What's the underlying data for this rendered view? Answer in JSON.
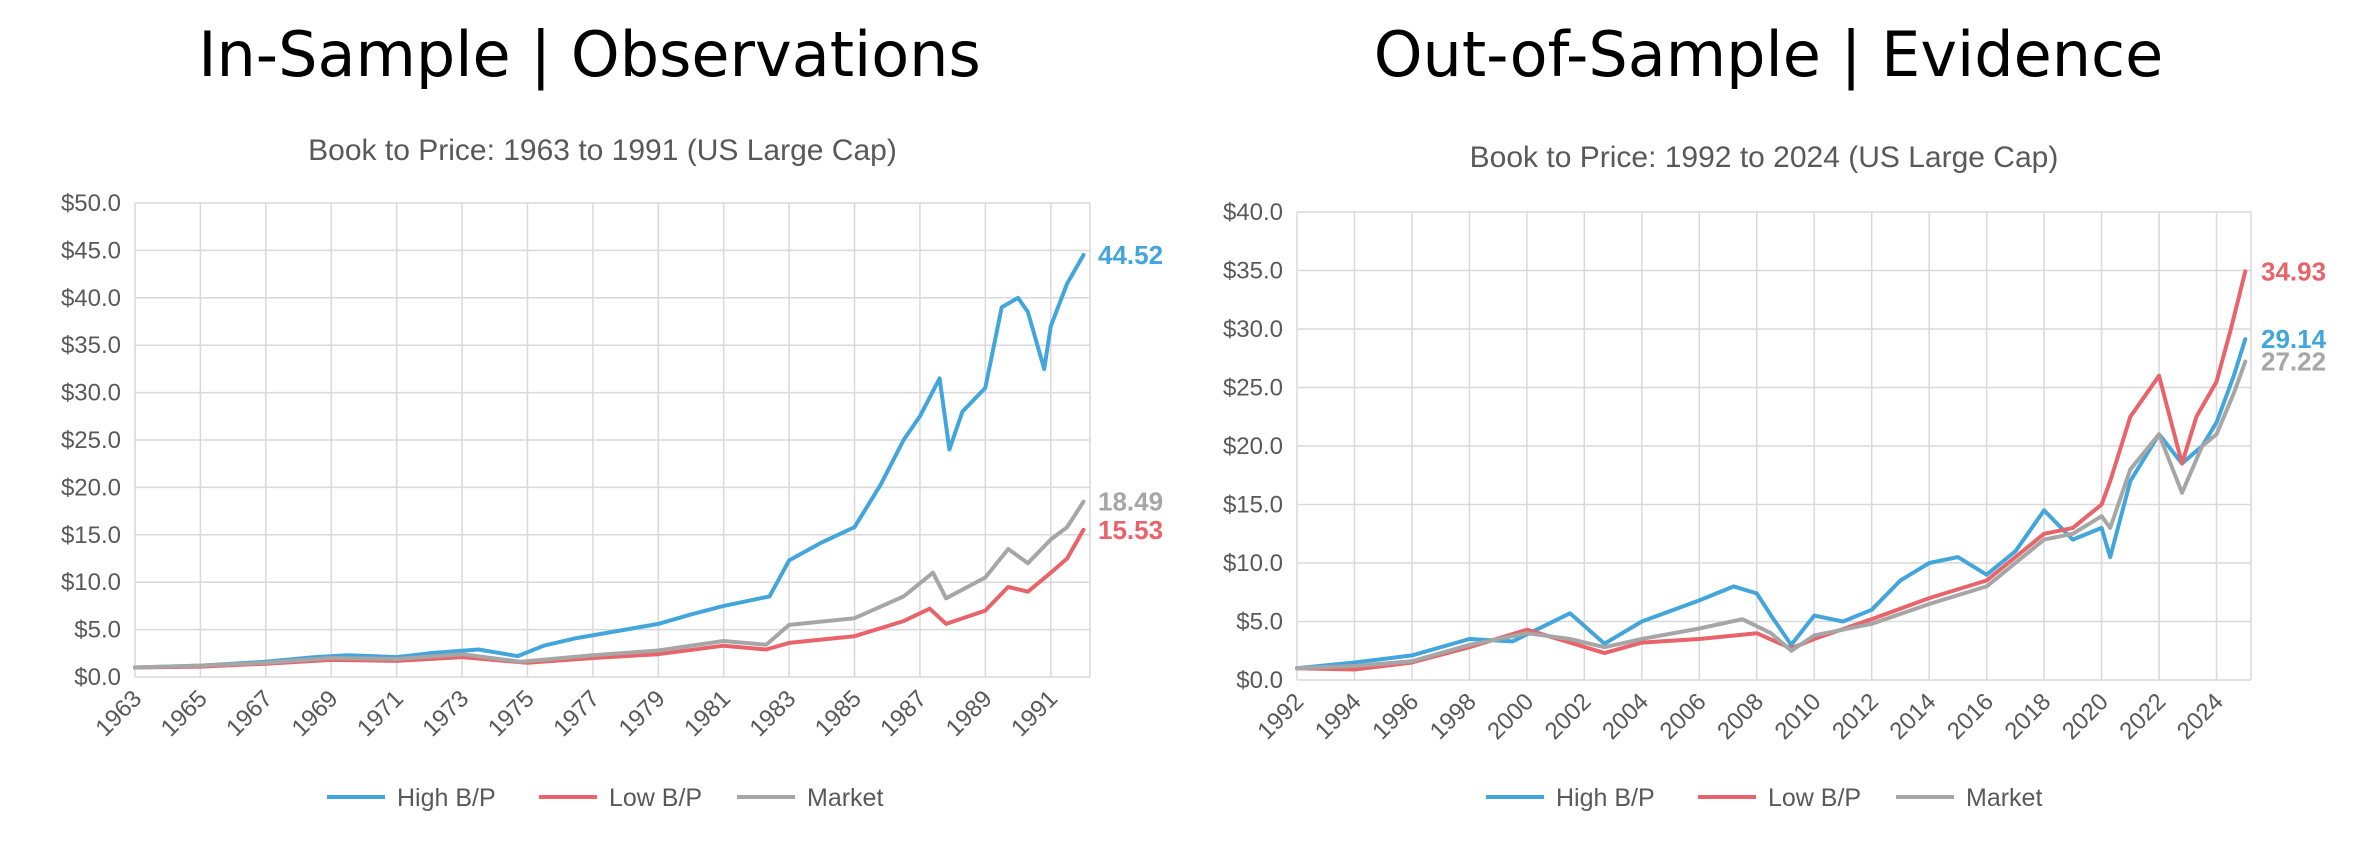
{
  "headings": [
    "In-Sample | Observations",
    "Out-of-Sample | Evidence"
  ],
  "colors": {
    "high": "#42a6dc",
    "low": "#e8646a",
    "market": "#a6a6a6",
    "grid": "#d9d9d9",
    "text": "#595959"
  },
  "chart_data": [
    {
      "type": "line",
      "title": "Book to Price: 1963 to 1991 (US Large Cap)",
      "xlabel": "",
      "ylabel": "",
      "x_range": [
        1963.0,
        1992.2
      ],
      "ylim": [
        0,
        50
      ],
      "y_ticks": [
        "$0.0",
        "$5.0",
        "$10.0",
        "$15.0",
        "$20.0",
        "$25.0",
        "$30.0",
        "$35.0",
        "$40.0",
        "$45.0",
        "$50.0"
      ],
      "x_ticks": [
        "1963",
        "1965",
        "1967",
        "1969",
        "1971",
        "1973",
        "1975",
        "1977",
        "1979",
        "1981",
        "1983",
        "1985",
        "1987",
        "1989",
        "1991"
      ],
      "grid": true,
      "legend": "bottom",
      "series": [
        {
          "name": "High B/P",
          "color": "#42a6dc",
          "end_label": "44.52",
          "x": [
            1963,
            1965,
            1967,
            1968.5,
            1969.5,
            1971,
            1972,
            1973.5,
            1974.7,
            1975.5,
            1976.5,
            1978,
            1979,
            1980,
            1981,
            1982.4,
            1983,
            1984,
            1985,
            1985.8,
            1986.5,
            1987,
            1987.6,
            1987.9,
            1988.3,
            1989,
            1989.5,
            1990,
            1990.3,
            1990.8,
            1991,
            1991.5,
            1992
          ],
          "y": [
            1.0,
            1.2,
            1.6,
            2.1,
            2.3,
            2.1,
            2.5,
            2.9,
            2.2,
            3.3,
            4.1,
            5.0,
            5.6,
            6.6,
            7.5,
            8.5,
            12.3,
            14.2,
            15.8,
            20.3,
            25.0,
            27.5,
            31.5,
            24.0,
            28.0,
            30.5,
            39.0,
            40.0,
            38.5,
            32.5,
            37.0,
            41.5,
            44.52
          ]
        },
        {
          "name": "Low B/P",
          "color": "#e8646a",
          "end_label": "15.53",
          "x": [
            1963,
            1965,
            1967,
            1969,
            1971,
            1973,
            1975,
            1977,
            1979,
            1981,
            1982.3,
            1983,
            1985,
            1986.5,
            1987.3,
            1987.8,
            1989,
            1989.7,
            1990.3,
            1991,
            1991.5,
            1992
          ],
          "y": [
            1.0,
            1.1,
            1.4,
            1.8,
            1.7,
            2.1,
            1.5,
            2.0,
            2.4,
            3.3,
            2.9,
            3.6,
            4.3,
            5.9,
            7.2,
            5.6,
            7.0,
            9.5,
            9.0,
            11.0,
            12.5,
            15.53
          ]
        },
        {
          "name": "Market",
          "color": "#a6a6a6",
          "end_label": "18.49",
          "x": [
            1963,
            1965,
            1967,
            1969,
            1971,
            1973,
            1974.8,
            1977,
            1979,
            1981,
            1982.3,
            1983,
            1985,
            1986.5,
            1987.4,
            1987.8,
            1989,
            1989.7,
            1990.3,
            1991,
            1991.5,
            1992
          ],
          "y": [
            1.0,
            1.2,
            1.5,
            2.0,
            1.9,
            2.4,
            1.6,
            2.3,
            2.8,
            3.8,
            3.4,
            5.5,
            6.2,
            8.5,
            11.0,
            8.3,
            10.5,
            13.5,
            12.0,
            14.5,
            15.8,
            18.49
          ]
        }
      ]
    },
    {
      "type": "line",
      "title": "Book to Price: 1992 to 2024 (US Large Cap)",
      "xlabel": "",
      "ylabel": "",
      "x_range": [
        1992.0,
        2025.2
      ],
      "ylim": [
        0,
        40
      ],
      "y_ticks": [
        "$0.0",
        "$5.0",
        "$10.0",
        "$15.0",
        "$20.0",
        "$25.0",
        "$30.0",
        "$35.0",
        "$40.0"
      ],
      "x_ticks": [
        "1992",
        "1994",
        "1996",
        "1998",
        "2000",
        "2002",
        "2004",
        "2006",
        "2008",
        "2010",
        "2012",
        "2014",
        "2016",
        "2018",
        "2020",
        "2022",
        "2024"
      ],
      "grid": true,
      "legend": "bottom",
      "series": [
        {
          "name": "High B/P",
          "color": "#42a6dc",
          "end_label": "29.14",
          "x": [
            1992,
            1994,
            1996,
            1998,
            1999.5,
            2000.5,
            2001.5,
            2002.7,
            2004,
            2006,
            2007.2,
            2008,
            2008.5,
            2009.2,
            2010,
            2011,
            2012,
            2013,
            2014,
            2015,
            2016,
            2017,
            2018,
            2019,
            2020,
            2020.3,
            2021,
            2022,
            2022.8,
            2023.5,
            2024,
            2024.6,
            2025
          ],
          "y": [
            1.0,
            1.5,
            2.1,
            3.5,
            3.3,
            4.5,
            5.7,
            3.1,
            5.0,
            6.8,
            8.0,
            7.4,
            5.5,
            3.0,
            5.5,
            5.0,
            6.0,
            8.5,
            10.0,
            10.5,
            9.0,
            11.0,
            14.5,
            12.0,
            13.0,
            10.5,
            17.0,
            21.0,
            18.5,
            20.0,
            22.0,
            26.0,
            29.14
          ]
        },
        {
          "name": "Low B/P",
          "color": "#e8646a",
          "end_label": "34.93",
          "x": [
            1992,
            1994,
            1996,
            1998,
            2000,
            2001.5,
            2002.7,
            2004,
            2006,
            2008,
            2009.2,
            2010,
            2012,
            2014,
            2016,
            2018,
            2019,
            2020,
            2020.3,
            2021,
            2022,
            2022.8,
            2023.3,
            2024,
            2024.5,
            2025
          ],
          "y": [
            1.0,
            0.9,
            1.5,
            2.8,
            4.3,
            3.2,
            2.3,
            3.2,
            3.5,
            4.0,
            2.7,
            3.5,
            5.2,
            7.0,
            8.5,
            12.5,
            13.0,
            15.0,
            17.0,
            22.5,
            26.0,
            18.5,
            22.5,
            25.5,
            30.0,
            34.93
          ]
        },
        {
          "name": "Market",
          "color": "#a6a6a6",
          "end_label": "27.22",
          "x": [
            1992,
            1994,
            1996,
            1998,
            2000,
            2001.5,
            2002.7,
            2004,
            2006,
            2007.5,
            2008.5,
            2009.2,
            2010,
            2012,
            2014,
            2016,
            2018,
            2019,
            2020,
            2020.3,
            2021,
            2022,
            2022.8,
            2023.5,
            2024,
            2024.6,
            2025
          ],
          "y": [
            1.0,
            1.2,
            1.6,
            3.0,
            4.0,
            3.5,
            2.8,
            3.5,
            4.4,
            5.2,
            4.0,
            2.5,
            3.8,
            4.8,
            6.5,
            8.0,
            12.0,
            12.5,
            14.0,
            13.0,
            18.0,
            21.0,
            16.0,
            20.0,
            21.0,
            24.5,
            27.22
          ]
        }
      ]
    }
  ]
}
